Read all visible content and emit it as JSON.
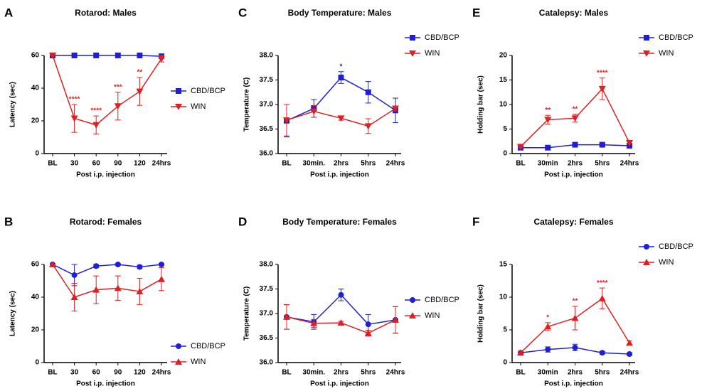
{
  "chart_data": [
    {
      "type": "line",
      "panel": "A",
      "title": "Rotarod: Males",
      "x_label": "Post i.p. injection",
      "y_label": "Latency (sec)",
      "categories": [
        "BL",
        "30",
        "60",
        "90",
        "120",
        "24hrs"
      ],
      "ylim": [
        0,
        60
      ],
      "yticks": [
        0,
        20,
        40,
        60
      ],
      "legend": "right",
      "series": [
        {
          "name": "CBD/BCP",
          "color": "#1f1fd6",
          "marker": "square",
          "values": [
            60,
            60,
            60,
            60,
            60,
            59.5
          ],
          "errors": [
            0,
            0,
            0,
            0,
            0,
            0.5
          ]
        },
        {
          "name": "WIN",
          "color": "#e02020",
          "marker": "triangle-down",
          "values": [
            60,
            21.5,
            17.5,
            29,
            38,
            58
          ],
          "errors": [
            0,
            8.5,
            5.5,
            8.5,
            8.5,
            2
          ]
        }
      ],
      "annotations": [
        {
          "text": "****",
          "x": "30",
          "series": "WIN"
        },
        {
          "text": "****",
          "x": "60",
          "series": "WIN"
        },
        {
          "text": "***",
          "x": "90",
          "series": "WIN"
        },
        {
          "text": "**",
          "x": "120",
          "series": "WIN"
        }
      ]
    },
    {
      "type": "line",
      "panel": "C",
      "title": "Body Temperature: Males",
      "x_label": "Post i.p. injection",
      "y_label": "Temperature (C)",
      "categories": [
        "BL",
        "30min.",
        "2hrs",
        "5hrs",
        "24hrs"
      ],
      "ylim": [
        36,
        38
      ],
      "yticks": [
        {
          "value": 36,
          "label": "36.0"
        },
        36.5,
        {
          "value": 37,
          "label": "37.0"
        },
        37.5,
        {
          "value": 38,
          "label": "38.0"
        }
      ],
      "legend": "upper-right",
      "series": [
        {
          "name": "CBD/BCP",
          "color": "#1f1fd6",
          "marker": "square",
          "values": [
            36.67,
            36.92,
            37.55,
            37.25,
            36.88
          ],
          "errors": [
            0.33,
            0.18,
            0.12,
            0.22,
            0.25
          ]
        },
        {
          "name": "WIN",
          "color": "#e02020",
          "marker": "triangle-down",
          "values": [
            36.68,
            36.86,
            36.72,
            36.56,
            36.92
          ],
          "errors": [
            0.32,
            0.12,
            0.04,
            0.15,
            0.05
          ]
        }
      ],
      "annotations": [
        {
          "text": "*",
          "x": "2hrs",
          "series": "CBD/BCP"
        }
      ]
    },
    {
      "type": "line",
      "panel": "E",
      "title": "Catalepsy: Males",
      "x_label": "Post i.p. injection",
      "y_label": "Holding bar (sec)",
      "categories": [
        "BL",
        "30min",
        "2hrs",
        "5hrs",
        "24hrs"
      ],
      "ylim": [
        0,
        20
      ],
      "yticks": [
        0,
        5,
        10,
        15,
        20
      ],
      "legend": "upper-right",
      "series": [
        {
          "name": "CBD/BCP",
          "color": "#1f1fd6",
          "marker": "square",
          "values": [
            1.2,
            1.2,
            1.8,
            1.8,
            1.6
          ],
          "errors": [
            0.2,
            0.2,
            0.3,
            0.3,
            0.3
          ]
        },
        {
          "name": "WIN",
          "color": "#e02020",
          "marker": "triangle-down",
          "values": [
            1.4,
            6.9,
            7.2,
            13.2,
            2.2
          ],
          "errors": [
            0.2,
            0.9,
            0.8,
            2.2,
            0.2
          ]
        }
      ],
      "annotations": [
        {
          "text": "**",
          "x": "30min",
          "series": "WIN"
        },
        {
          "text": "**",
          "x": "2hrs",
          "series": "WIN"
        },
        {
          "text": "****",
          "x": "5hrs",
          "series": "WIN"
        }
      ]
    },
    {
      "type": "line",
      "panel": "B",
      "title": "Rotarod: Females",
      "x_label": "Post i.p. injection",
      "y_label": "Latency (sec)",
      "categories": [
        "BL",
        "30",
        "60",
        "90",
        "120",
        "24hrs"
      ],
      "ylim": [
        0,
        60
      ],
      "yticks": [
        0,
        20,
        40,
        60
      ],
      "legend": "lower-right",
      "series": [
        {
          "name": "CBD/BCP",
          "color": "#1f1fd6",
          "marker": "circle",
          "values": [
            60,
            53.5,
            59,
            60,
            58.5,
            60
          ],
          "errors": [
            0,
            6.5,
            1,
            0.5,
            1,
            0.5
          ]
        },
        {
          "name": "WIN",
          "color": "#e02020",
          "marker": "triangle",
          "values": [
            60,
            40,
            44.5,
            45.5,
            43.5,
            51
          ],
          "errors": [
            0,
            8.5,
            8.5,
            7.5,
            8,
            7
          ]
        }
      ],
      "annotations": []
    },
    {
      "type": "line",
      "panel": "D",
      "title": "Body Temperature: Females",
      "x_label": "Post i.p. injection",
      "y_label": "Temperature (C)",
      "categories": [
        "BL",
        "30min.",
        "2hrs",
        "5hrs",
        "24hrs"
      ],
      "ylim": [
        36,
        38
      ],
      "yticks": [
        {
          "value": 36,
          "label": "36.0"
        },
        36.5,
        {
          "value": 37,
          "label": "37.0"
        },
        37.5,
        {
          "value": 38,
          "label": "38.0"
        }
      ],
      "legend": "right",
      "series": [
        {
          "name": "CBD/BCP",
          "color": "#1f1fd6",
          "marker": "circle",
          "values": [
            36.93,
            36.83,
            37.38,
            36.78,
            36.87
          ],
          "errors": [
            0.25,
            0.15,
            0.12,
            0.2,
            0.27
          ]
        },
        {
          "name": "WIN",
          "color": "#e02020",
          "marker": "triangle",
          "values": [
            36.93,
            36.8,
            36.81,
            36.6,
            36.87
          ],
          "errors": [
            0.25,
            0.08,
            0.03,
            0.06,
            0.27
          ]
        }
      ],
      "annotations": []
    },
    {
      "type": "line",
      "panel": "F",
      "title": "Catalepsy: Females",
      "x_label": "Post i.p. injection",
      "y_label": "Holding bar (sec)",
      "categories": [
        "BL",
        "30min",
        "2hrs",
        "5hrs",
        "24hrs"
      ],
      "ylim": [
        0,
        15
      ],
      "yticks": [
        0,
        5,
        10,
        15
      ],
      "legend": "upper-right",
      "series": [
        {
          "name": "CBD/BCP",
          "color": "#1f1fd6",
          "marker": "circle",
          "values": [
            1.5,
            2.0,
            2.3,
            1.5,
            1.3
          ],
          "errors": [
            0.2,
            0.4,
            0.5,
            0.2,
            0.2
          ]
        },
        {
          "name": "WIN",
          "color": "#e02020",
          "marker": "triangle",
          "values": [
            1.5,
            5.5,
            6.8,
            9.8,
            3.0
          ],
          "errors": [
            0.2,
            0.6,
            1.8,
            1.6,
            0.3
          ]
        }
      ],
      "annotations": [
        {
          "text": "*",
          "x": "30min",
          "series": "WIN"
        },
        {
          "text": "**",
          "x": "2hrs",
          "series": "WIN"
        },
        {
          "text": "****",
          "x": "5hrs",
          "series": "WIN"
        }
      ]
    }
  ]
}
